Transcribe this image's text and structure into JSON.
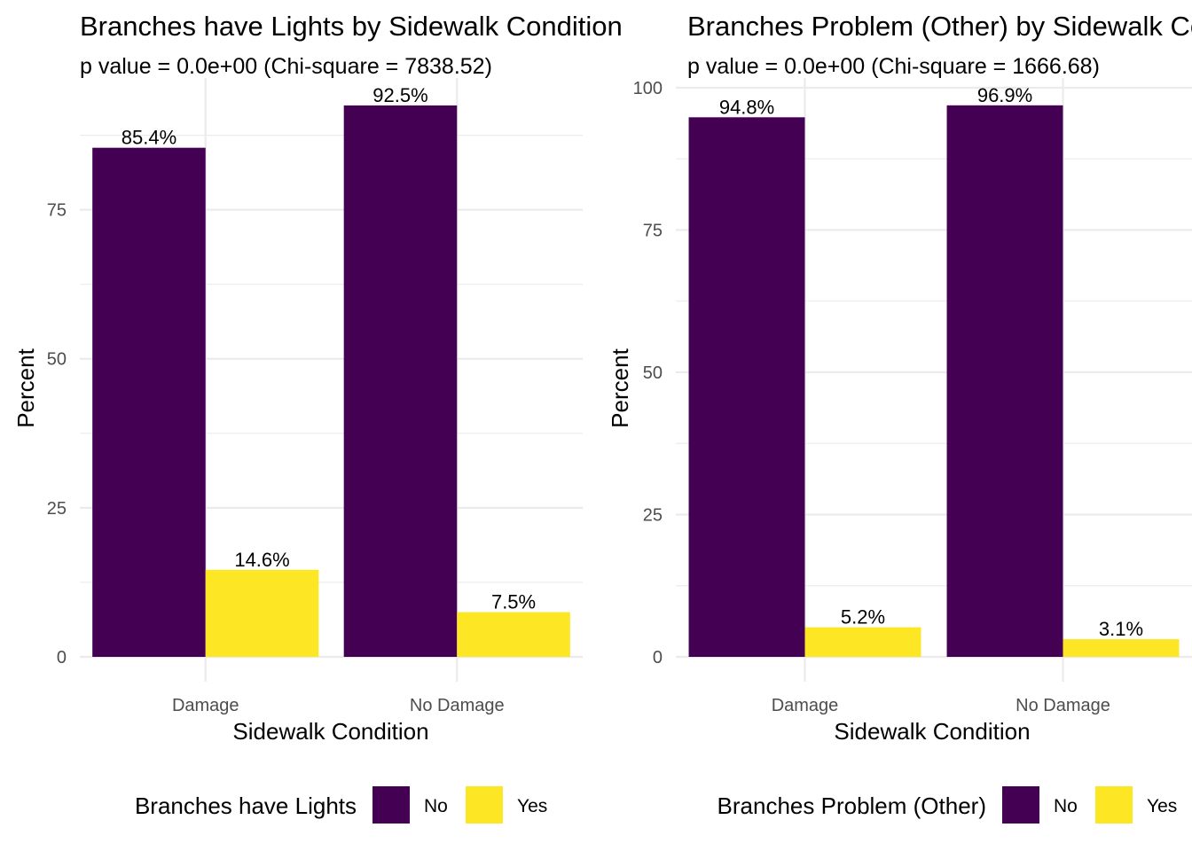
{
  "chart_data": [
    {
      "type": "bar",
      "title": "Branches have Lights by Sidewalk Condition",
      "subtitle": "p value = 0.0e+00 (Chi-square = 7838.52)",
      "xlabel": "Sidewalk Condition",
      "ylabel": "Percent",
      "categories": [
        "Damage",
        "No Damage"
      ],
      "series": [
        {
          "name": "No",
          "values": [
            85.4,
            92.5
          ],
          "labels": [
            "85.4%",
            "92.5%"
          ],
          "color": "#440154"
        },
        {
          "name": "Yes",
          "values": [
            14.6,
            7.5
          ],
          "labels": [
            "14.6%",
            "7.5%"
          ],
          "color": "#FDE725"
        }
      ],
      "yticks": [
        0,
        25,
        50,
        75
      ],
      "ylim": [
        0,
        97.1
      ],
      "grid": true,
      "legend": {
        "title": "Branches have Lights",
        "position": "bottom"
      }
    },
    {
      "type": "bar",
      "title": "Branches Problem (Other) by Sidewalk Condition",
      "subtitle": "p value = 0.0e+00 (Chi-square = 1666.68)",
      "xlabel": "Sidewalk Condition",
      "ylabel": "Percent",
      "categories": [
        "Damage",
        "No Damage"
      ],
      "series": [
        {
          "name": "No",
          "values": [
            94.8,
            96.9
          ],
          "labels": [
            "94.8%",
            "96.9%"
          ],
          "color": "#440154"
        },
        {
          "name": "Yes",
          "values": [
            5.2,
            3.1
          ],
          "labels": [
            "5.2%",
            "3.1%"
          ],
          "color": "#FDE725"
        }
      ],
      "yticks": [
        0,
        25,
        50,
        75,
        100
      ],
      "ylim": [
        0,
        101.7
      ],
      "grid": true,
      "legend": {
        "title": "Branches Problem (Other)",
        "position": "bottom"
      }
    }
  ]
}
